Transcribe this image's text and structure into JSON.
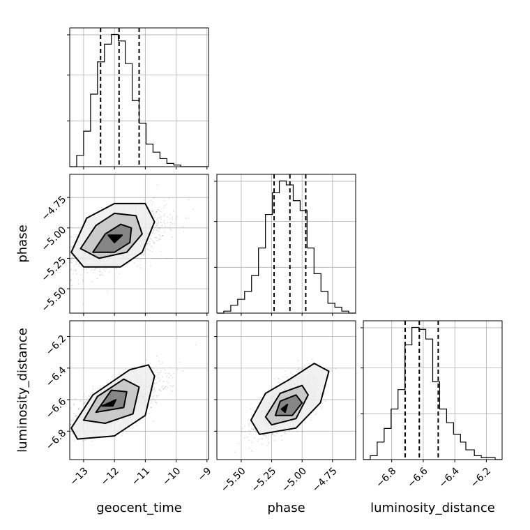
{
  "chart_data": {
    "type": "corner",
    "parameters": [
      "geocent_time",
      "phase",
      "luminosity_distance"
    ],
    "axis_labels": {
      "geocent_time": "geocent_time",
      "phase": "phase",
      "luminosity_distance": "luminosity_distance"
    },
    "ranges": {
      "geocent_time": [
        -13.45,
        -8.95
      ],
      "phase": [
        -5.7,
        -4.56
      ],
      "luminosity_distance": [
        -6.98,
        -6.1
      ]
    },
    "ticks": {
      "geocent_time": [
        -13,
        -12,
        -11,
        -10,
        -9
      ],
      "phase": [
        -5.5,
        -5.25,
        -5.0,
        -4.75
      ],
      "luminosity_distance": [
        -6.8,
        -6.6,
        -6.4,
        -6.2
      ]
    },
    "tick_labels": {
      "geocent_time": [
        "−13",
        "−12",
        "−11",
        "−10",
        "−9"
      ],
      "phase": [
        "−5.50",
        "−5.25",
        "−5.00",
        "−4.75"
      ],
      "luminosity_distance": [
        "−6.8",
        "−6.6",
        "−6.4",
        "−6.2"
      ]
    },
    "quantiles": {
      "geocent_time": [
        -12.45,
        -11.85,
        -11.2
      ],
      "phase": [
        -5.23,
        -5.1,
        -4.97
      ],
      "luminosity_distance": [
        -6.715,
        -6.625,
        -6.505
      ]
    },
    "histograms": {
      "geocent_time": {
        "bin_edges": [
          -13.45,
          -13.225,
          -13.0,
          -12.775,
          -12.55,
          -12.325,
          -12.1,
          -11.875,
          -11.65,
          -11.425,
          -11.2,
          -10.975,
          -10.75,
          -10.525,
          -10.3,
          -10.075,
          -9.85,
          -9.625,
          -9.4,
          -9.175,
          -8.95
        ],
        "counts": [
          0,
          7,
          22,
          45,
          65,
          76,
          82,
          78,
          64,
          41,
          27,
          14,
          9,
          5,
          2,
          1,
          0,
          0,
          0,
          0
        ]
      },
      "phase": {
        "bin_edges": [
          -5.7,
          -5.643,
          -5.586,
          -5.529,
          -5.472,
          -5.415,
          -5.358,
          -5.301,
          -5.244,
          -5.187,
          -5.13,
          -5.073,
          -5.016,
          -4.959,
          -4.902,
          -4.845,
          -4.788,
          -4.731,
          -4.674,
          -4.617,
          -4.56
        ],
        "counts": [
          0,
          1,
          4,
          7,
          11,
          19,
          33,
          50,
          61,
          67,
          65,
          57,
          52,
          33,
          20,
          11,
          5,
          3,
          1,
          0
        ]
      },
      "luminosity_distance": {
        "bin_edges": [
          -6.98,
          -6.936,
          -6.892,
          -6.848,
          -6.804,
          -6.76,
          -6.716,
          -6.672,
          -6.628,
          -6.584,
          -6.54,
          -6.496,
          -6.452,
          -6.408,
          -6.364,
          -6.33,
          -6.276,
          -6.232,
          -6.188,
          -6.144,
          -6.1
        ],
        "counts": [
          0,
          2,
          9,
          16,
          26,
          36,
          59,
          68,
          67,
          62,
          40,
          26,
          19,
          13,
          9,
          5,
          2,
          1,
          1,
          0
        ]
      }
    },
    "scatter_panels": [
      {
        "x": "geocent_time",
        "y": "phase",
        "center": [
          -11.85,
          -5.1
        ],
        "spread": [
          0.75,
          0.12
        ],
        "correlation": 0.55,
        "contour_levels": [
          [
            [
              -12.2,
              -5.06
            ],
            [
              -11.75,
              -5.06
            ],
            [
              -12.0,
              -5.12
            ]
          ],
          [
            [
              -12.7,
              -5.2
            ],
            [
              -12.3,
              -5.05
            ],
            [
              -11.8,
              -4.97
            ],
            [
              -11.45,
              -5.0
            ],
            [
              -11.5,
              -5.12
            ],
            [
              -12.0,
              -5.2
            ]
          ],
          [
            [
              -13.1,
              -5.17
            ],
            [
              -12.6,
              -4.98
            ],
            [
              -12.0,
              -4.88
            ],
            [
              -11.3,
              -4.9
            ],
            [
              -11.1,
              -5.05
            ],
            [
              -11.6,
              -5.2
            ],
            [
              -12.5,
              -5.25
            ]
          ],
          [
            [
              -13.4,
              -5.2
            ],
            [
              -12.9,
              -4.92
            ],
            [
              -12.0,
              -4.8
            ],
            [
              -11.0,
              -4.8
            ],
            [
              -10.7,
              -4.95
            ],
            [
              -11.1,
              -5.2
            ],
            [
              -11.8,
              -5.32
            ],
            [
              -13.0,
              -5.32
            ]
          ]
        ]
      },
      {
        "x": "geocent_time",
        "y": "luminosity_distance",
        "center": [
          -11.9,
          -6.62
        ],
        "spread": [
          0.7,
          0.09
        ],
        "correlation": 0.7,
        "contour_levels": [
          [
            [
              -12.4,
              -6.64
            ],
            [
              -12.05,
              -6.64
            ],
            [
              -11.95,
              -6.6
            ]
          ],
          [
            [
              -12.6,
              -6.68
            ],
            [
              -12.1,
              -6.54
            ],
            [
              -11.6,
              -6.55
            ],
            [
              -11.7,
              -6.65
            ]
          ],
          [
            [
              -13.0,
              -6.73
            ],
            [
              -12.55,
              -6.58
            ],
            [
              -11.7,
              -6.47
            ],
            [
              -11.2,
              -6.52
            ],
            [
              -11.4,
              -6.69
            ],
            [
              -12.3,
              -6.75
            ]
          ],
          [
            [
              -13.4,
              -6.78
            ],
            [
              -12.7,
              -6.57
            ],
            [
              -11.5,
              -6.41
            ],
            [
              -10.9,
              -6.38
            ],
            [
              -10.7,
              -6.45
            ],
            [
              -11.0,
              -6.7
            ],
            [
              -12.0,
              -6.83
            ],
            [
              -13.2,
              -6.85
            ]
          ]
        ]
      },
      {
        "x": "phase",
        "y": "luminosity_distance",
        "center": [
          -5.12,
          -6.62
        ],
        "spread": [
          0.12,
          0.09
        ],
        "correlation": 0.65,
        "contour_levels": [
          [
            [
              -5.17,
              -6.66
            ],
            [
              -5.12,
              -6.63
            ],
            [
              -5.14,
              -6.68
            ]
          ],
          [
            [
              -5.22,
              -6.7
            ],
            [
              -5.18,
              -6.61
            ],
            [
              -5.05,
              -6.57
            ],
            [
              -5.0,
              -6.62
            ],
            [
              -5.08,
              -6.7
            ]
          ],
          [
            [
              -5.3,
              -6.71
            ],
            [
              -5.18,
              -6.56
            ],
            [
              -5.0,
              -6.51
            ],
            [
              -4.95,
              -6.57
            ],
            [
              -5.05,
              -6.72
            ],
            [
              -5.25,
              -6.76
            ]
          ],
          [
            [
              -5.42,
              -6.73
            ],
            [
              -5.3,
              -6.56
            ],
            [
              -5.1,
              -6.47
            ],
            [
              -4.9,
              -6.37
            ],
            [
              -4.78,
              -6.42
            ],
            [
              -4.85,
              -6.62
            ],
            [
              -5.05,
              -6.78
            ],
            [
              -5.35,
              -6.82
            ]
          ]
        ]
      }
    ],
    "grid": true
  }
}
